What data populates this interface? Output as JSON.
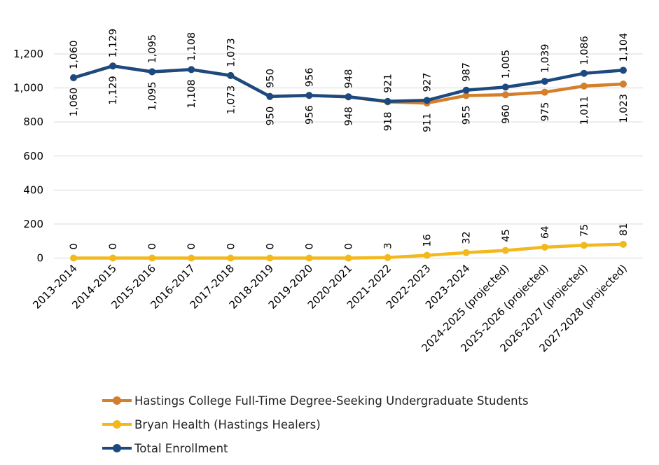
{
  "chart_data": {
    "type": "line",
    "title": "",
    "xlabel": "",
    "ylabel": "",
    "ylim": [
      0,
      1400
    ],
    "yticks": [
      0,
      200,
      400,
      600,
      800,
      1000,
      1200
    ],
    "ytick_labels": [
      "0",
      "200",
      "400",
      "600",
      "800",
      "1,000",
      "1,200"
    ],
    "grid": true,
    "legend_position": "bottom",
    "categories": [
      "2013-2014",
      "2014-2015",
      "2015-2016",
      "2016-2017",
      "2017-2018",
      "2018-2019",
      "2019-2020",
      "2020-2021",
      "2021-2022",
      "2022-2023",
      "2023-2024",
      "2024-2025 (projected)",
      "2025-2026 (projected)",
      "2026-2027 (projected)",
      "2027-2028 (projected)"
    ],
    "series": [
      {
        "name": "Hastings College Full-Time Degree-Seeking Undergraduate Students",
        "color": "#d47f2c",
        "label_position": "below",
        "values": [
          1060,
          1129,
          1095,
          1108,
          1073,
          950,
          956,
          948,
          918,
          911,
          955,
          960,
          975,
          1011,
          1023
        ],
        "labels": [
          "1,060",
          "1,129",
          "1,095",
          "1,108",
          "1,073",
          "950",
          "956",
          "948",
          "918",
          "911",
          "955",
          "960",
          "975",
          "1,011",
          "1,023"
        ]
      },
      {
        "name": "Bryan Health (Hastings Healers)",
        "color": "#f3b81c",
        "label_position": "above",
        "values": [
          0,
          0,
          0,
          0,
          0,
          0,
          0,
          0,
          3,
          16,
          32,
          45,
          64,
          75,
          81
        ],
        "labels": [
          "0",
          "0",
          "0",
          "0",
          "0",
          "0",
          "0",
          "0",
          "3",
          "16",
          "32",
          "45",
          "64",
          "75",
          "81"
        ]
      },
      {
        "name": "Total Enrollment",
        "color": "#1c4a80",
        "label_position": "above",
        "values": [
          1060,
          1129,
          1095,
          1108,
          1073,
          950,
          956,
          948,
          921,
          927,
          987,
          1005,
          1039,
          1086,
          1104
        ],
        "labels": [
          "1,060",
          "1,129",
          "1,095",
          "1,108",
          "1,073",
          "950",
          "956",
          "948",
          "921",
          "927",
          "987",
          "1,005",
          "1,039",
          "1,086",
          "1,104"
        ]
      }
    ]
  }
}
